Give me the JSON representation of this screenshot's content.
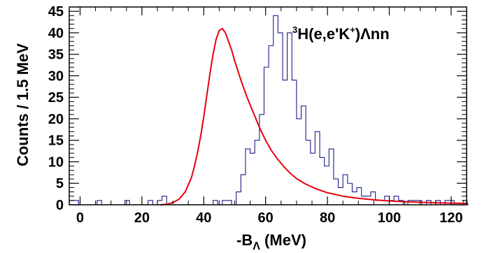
{
  "chart_data": {
    "type": "histogram",
    "title": "",
    "annotation": {
      "sup": "3",
      "pre": "H(e,e'K",
      "sup2": "+",
      "post": ")Λnn"
    },
    "xlabel": {
      "main": "-B",
      "sub": "Λ",
      "unit": " (MeV)"
    },
    "ylabel": "Counts / 1.5 MeV",
    "xlim": [
      -3.5,
      125.0
    ],
    "ylim": [
      0,
      46
    ],
    "xticks": [
      0,
      20,
      40,
      60,
      80,
      100,
      120
    ],
    "yticks": [
      0,
      5,
      10,
      15,
      20,
      25,
      30,
      35,
      40,
      45
    ],
    "grid": false,
    "bin_width": 1.5,
    "bin_start": -3.5,
    "counts": [
      1,
      1,
      0,
      0,
      0,
      0,
      1,
      0,
      0,
      0,
      0,
      0,
      1,
      0,
      0,
      0,
      0,
      1,
      0,
      1,
      2,
      0,
      0,
      0,
      0,
      0,
      0,
      0,
      0,
      0,
      0,
      1,
      0,
      1,
      1,
      0,
      3,
      7,
      13,
      12,
      15,
      21,
      32,
      37,
      44,
      40,
      29,
      40,
      29,
      20,
      23,
      15,
      12,
      17,
      11,
      9,
      13,
      6,
      4,
      7,
      5,
      3,
      4,
      2,
      2,
      3,
      1,
      1,
      2,
      1,
      2,
      1,
      0,
      1,
      1,
      1,
      0,
      1,
      0,
      1,
      0,
      1,
      1,
      0,
      0,
      1,
      0
    ],
    "fit": {
      "color": "#e8000b",
      "x": [
        26,
        28,
        30,
        32,
        34,
        36,
        37,
        38,
        39,
        40,
        41,
        42,
        43,
        44,
        45,
        46,
        47,
        48,
        49,
        50,
        52,
        54,
        56,
        58,
        60,
        62,
        64,
        66,
        68,
        70,
        73,
        76,
        80,
        85,
        90,
        95,
        100,
        105,
        110,
        115,
        120,
        125
      ],
      "y": [
        0,
        0.15,
        0.5,
        1.3,
        3.0,
        6.3,
        9.0,
        12.2,
        16.0,
        20.5,
        25.5,
        30.5,
        35.0,
        38.5,
        40.5,
        41.0,
        40.0,
        38.0,
        36.0,
        33.5,
        29.0,
        25.0,
        21.5,
        18.0,
        15.0,
        12.5,
        10.5,
        8.8,
        7.3,
        6.1,
        4.8,
        3.8,
        2.8,
        2.0,
        1.5,
        1.15,
        0.9,
        0.72,
        0.58,
        0.47,
        0.39,
        0.32
      ]
    },
    "hist_color": "#1c1c8c",
    "frame_color": "#000000"
  }
}
